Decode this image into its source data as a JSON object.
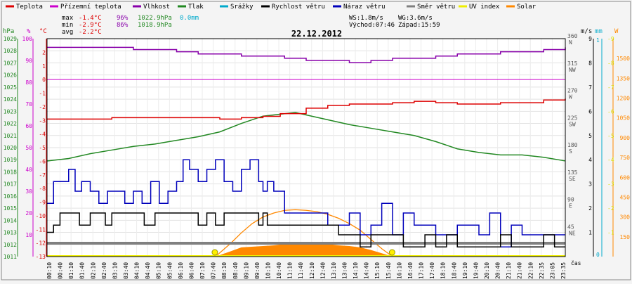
{
  "chart_data": {
    "type": "line",
    "title": "22.12.2012",
    "legend": [
      {
        "label": "Teplota",
        "color": "#dd0000"
      },
      {
        "label": "Přízemní teplota",
        "color": "#cc00cc"
      },
      {
        "label": "Vlhkost",
        "color": "#8800aa"
      },
      {
        "label": "Tlak",
        "color": "#228822"
      },
      {
        "label": "Srážky",
        "color": "#00aacc"
      },
      {
        "label": "Rychlost větru",
        "color": "#000000"
      },
      {
        "label": "Náraz větru",
        "color": "#0000bb"
      },
      {
        "label": "Směr větru",
        "color": "#808080"
      },
      {
        "label": "UV index",
        "color": "#eeee00"
      },
      {
        "label": "Solar",
        "color": "#ff8800"
      }
    ],
    "stats": {
      "max_label": "max",
      "max_temp": "-1.4°C",
      "max_hum": "96%",
      "max_press": "1022.9hPa",
      "max_rain": "0.0mm",
      "min_label": "min",
      "min_temp": "-2.9°C",
      "min_hum": "86%",
      "min_press": "1018.9hPa",
      "avg_label": "avg",
      "avg_temp": "-2.2°C",
      "ws": "WS:1.8m/s",
      "wg": "WG:3.6m/s",
      "sunrise": "Východ:07:46",
      "sunset": "Západ:15:59"
    },
    "axes": {
      "hpa": {
        "unit": "hPa",
        "range": [
          1011,
          1029
        ],
        "ticks": [
          1011,
          1012,
          1013,
          1014,
          1015,
          1016,
          1017,
          1018,
          1019,
          1020,
          1021,
          1022,
          1023,
          1024,
          1025,
          1026,
          1027,
          1028,
          1029
        ]
      },
      "humidity": {
        "unit": "%",
        "range": [
          0,
          100
        ],
        "ticks": [
          10,
          20,
          30,
          40,
          50,
          60,
          70,
          80,
          90,
          100
        ]
      },
      "temp": {
        "unit": "°C",
        "range": [
          -13,
          3
        ],
        "ticks": [
          -13,
          -12,
          -11,
          -10,
          -9,
          -8,
          -7,
          -6,
          -5,
          -4,
          -3,
          -2,
          -1,
          0,
          1,
          2
        ]
      },
      "wind_dir": {
        "ticks": [
          "45",
          "90",
          "135",
          "180",
          "225",
          "270",
          "315",
          "360"
        ],
        "labels": [
          "NE",
          "E",
          "SE",
          "S",
          "SW",
          "W",
          "NW",
          "N"
        ]
      },
      "ms": {
        "unit": "m/s",
        "range": [
          0,
          9
        ],
        "ticks": [
          1,
          2,
          3,
          4,
          5,
          6,
          7,
          8,
          9
        ]
      },
      "mm": {
        "unit": "mm",
        "range": [
          0,
          1
        ],
        "ticks": [
          "0",
          "1"
        ]
      },
      "watt": {
        "unit": "W",
        "range": [
          0,
          1650
        ],
        "ticks": [
          150,
          300,
          450,
          600,
          750,
          900,
          1050,
          1200,
          1350,
          1500
        ]
      },
      "time": {
        "label": "čas",
        "ticks": [
          "00:10",
          "00:40",
          "01:10",
          "01:40",
          "02:10",
          "02:40",
          "03:10",
          "03:40",
          "04:10",
          "04:40",
          "05:10",
          "05:40",
          "06:10",
          "06:40",
          "07:10",
          "07:40",
          "08:10",
          "08:40",
          "09:10",
          "09:40",
          "10:10",
          "10:40",
          "11:10",
          "11:40",
          "12:10",
          "12:40",
          "13:10",
          "13:40",
          "14:10",
          "14:40",
          "15:10",
          "15:40",
          "16:10",
          "16:40",
          "17:10",
          "17:40",
          "18:10",
          "18:40",
          "19:10",
          "19:40",
          "20:10",
          "20:40",
          "21:10",
          "21:40",
          "22:10",
          "22:35",
          "23:05",
          "23:35"
        ]
      }
    },
    "series": [
      {
        "name": "Teplota",
        "unit": "°C",
        "hours": [
          0,
          2,
          3,
          4,
          5,
          6,
          7,
          8,
          9,
          10,
          10.8,
          11.5,
          12,
          13,
          14,
          15,
          16,
          17,
          18,
          19,
          20,
          21,
          22,
          23,
          24
        ],
        "values": [
          -2.9,
          -2.9,
          -2.8,
          -2.8,
          -2.8,
          -2.8,
          -2.8,
          -2.9,
          -2.8,
          -2.7,
          -2.5,
          -2.5,
          -2.1,
          -1.9,
          -1.8,
          -1.8,
          -1.7,
          -1.6,
          -1.7,
          -1.8,
          -1.8,
          -1.7,
          -1.7,
          -1.5,
          -1.4
        ]
      },
      {
        "name": "Přízemní teplota",
        "unit": "°C",
        "hours": [
          0,
          24
        ],
        "values": [
          0,
          0
        ]
      },
      {
        "name": "Vlhkost",
        "unit": "%",
        "hours": [
          0,
          2,
          4,
          6,
          7,
          8,
          9,
          10,
          11,
          12,
          13,
          14,
          15,
          16,
          17,
          18,
          19,
          20,
          21,
          22,
          23,
          24
        ],
        "values": [
          96,
          96,
          95,
          94,
          93,
          93,
          92,
          92,
          91,
          90,
          90,
          89,
          90,
          91,
          91,
          92,
          93,
          93,
          94,
          94,
          95,
          96
        ]
      },
      {
        "name": "Tlak",
        "unit": "hPa",
        "hours": [
          0,
          1,
          2,
          3,
          4,
          5,
          6,
          7,
          8,
          9,
          10,
          11,
          11.5,
          12,
          13,
          14,
          15,
          16,
          17,
          18,
          19,
          20,
          21,
          22,
          23,
          24
        ],
        "values": [
          1018.9,
          1019.1,
          1019.5,
          1019.8,
          1020.1,
          1020.3,
          1020.6,
          1020.9,
          1021.3,
          1022.0,
          1022.6,
          1022.8,
          1022.9,
          1022.7,
          1022.3,
          1021.9,
          1021.6,
          1021.3,
          1021.0,
          1020.5,
          1019.9,
          1019.6,
          1019.4,
          1019.4,
          1019.2,
          1018.9
        ]
      },
      {
        "name": "Srážky",
        "unit": "mm",
        "hours": [
          0,
          24
        ],
        "values": [
          0,
          0
        ]
      },
      {
        "name": "Rychlost větru",
        "unit": "m/s",
        "hours": [
          0,
          0.3,
          0.6,
          1,
          1.5,
          2,
          2.3,
          2.7,
          3,
          3.4,
          4,
          4.5,
          5,
          5.5,
          6,
          6.5,
          7,
          7.4,
          7.8,
          8.2,
          8.6,
          9,
          9.4,
          9.8,
          10,
          10.2,
          10.6,
          11,
          11.4,
          12,
          12.5,
          13,
          13.5,
          14,
          14.5,
          15,
          15.5,
          16,
          16.5,
          17,
          17.5,
          18,
          18.5,
          19,
          19.5,
          20,
          20.5,
          21,
          21.5,
          22,
          22.5,
          23,
          23.5,
          24
        ],
        "values": [
          1,
          1.3,
          1.8,
          1.8,
          1.3,
          1.8,
          1.8,
          1.3,
          1.8,
          1.8,
          1.8,
          1.3,
          1.8,
          1.8,
          1.8,
          1.8,
          1.3,
          1.8,
          1.3,
          1.8,
          1.8,
          1.8,
          1.8,
          1.3,
          1.8,
          1.3,
          1.3,
          1.3,
          1.3,
          1.3,
          1.3,
          1.3,
          0.9,
          0.9,
          0.4,
          0.9,
          0.9,
          0.9,
          0.4,
          0.4,
          0.9,
          0.4,
          0.9,
          0.4,
          0.4,
          0.4,
          0.4,
          0.9,
          0.4,
          0.4,
          0.4,
          0.9,
          0.4,
          0.4
        ]
      },
      {
        "name": "Náraz větru",
        "unit": "m/s",
        "hours": [
          0,
          0.3,
          0.6,
          1,
          1.3,
          1.6,
          2,
          2.4,
          2.8,
          3.2,
          3.6,
          4,
          4.4,
          4.8,
          5.2,
          5.6,
          6,
          6.3,
          6.6,
          7,
          7.4,
          7.8,
          8.2,
          8.6,
          9,
          9.4,
          9.8,
          10,
          10.2,
          10.5,
          11,
          11.5,
          12,
          12.5,
          13,
          13.5,
          14,
          14.5,
          15,
          15.5,
          16,
          16.5,
          17,
          17.5,
          18,
          18.5,
          19,
          19.5,
          20,
          20.5,
          21,
          21.5,
          22,
          22.5,
          23,
          23.5,
          24
        ],
        "values": [
          2.2,
          3.1,
          3.1,
          3.6,
          2.7,
          3.1,
          2.7,
          2.2,
          2.7,
          2.7,
          2.2,
          2.7,
          2.2,
          3.1,
          2.2,
          2.7,
          3.1,
          4.0,
          3.6,
          3.1,
          3.6,
          4.0,
          3.1,
          2.7,
          3.6,
          4.0,
          3.1,
          2.7,
          3.1,
          2.7,
          1.8,
          1.8,
          1.8,
          1.8,
          1.3,
          1.3,
          1.8,
          0.9,
          1.3,
          2.2,
          0.9,
          1.8,
          1.3,
          1.3,
          0.9,
          0.9,
          1.3,
          1.3,
          0.9,
          1.8,
          0.4,
          1.3,
          0.9,
          0.9,
          0.9,
          0.9,
          0.9
        ]
      },
      {
        "name": "Směr větru",
        "unit": "°",
        "hours": [
          0,
          24
        ],
        "values": [
          22,
          22
        ]
      },
      {
        "name": "UV index",
        "unit": "",
        "hours": [
          0,
          24
        ],
        "values": [
          0,
          0
        ]
      },
      {
        "name": "Solar",
        "unit": "W/m²",
        "hours": [
          7.8,
          8.5,
          9,
          10,
          10.5,
          11,
          11.5,
          12,
          12.5,
          13,
          13.5,
          14,
          14.5,
          15,
          15.5,
          16
        ],
        "values": [
          0,
          40,
          70,
          80,
          85,
          95,
          100,
          105,
          100,
          95,
          85,
          80,
          70,
          50,
          25,
          0
        ]
      },
      {
        "name": "Solar max",
        "unit": "W/m²",
        "hours": [
          7.8,
          8.5,
          9,
          9.5,
          10,
          10.5,
          11,
          11.5,
          12,
          12.5,
          13,
          13.5,
          14,
          14.5,
          15,
          15.5,
          16
        ],
        "values": [
          0,
          100,
          180,
          250,
          300,
          330,
          350,
          355,
          350,
          340,
          320,
          290,
          250,
          200,
          130,
          60,
          0
        ]
      }
    ],
    "sun_markers": [
      {
        "name": "sunrise",
        "hour": 7.77
      },
      {
        "name": "sunset",
        "hour": 15.98
      }
    ]
  }
}
